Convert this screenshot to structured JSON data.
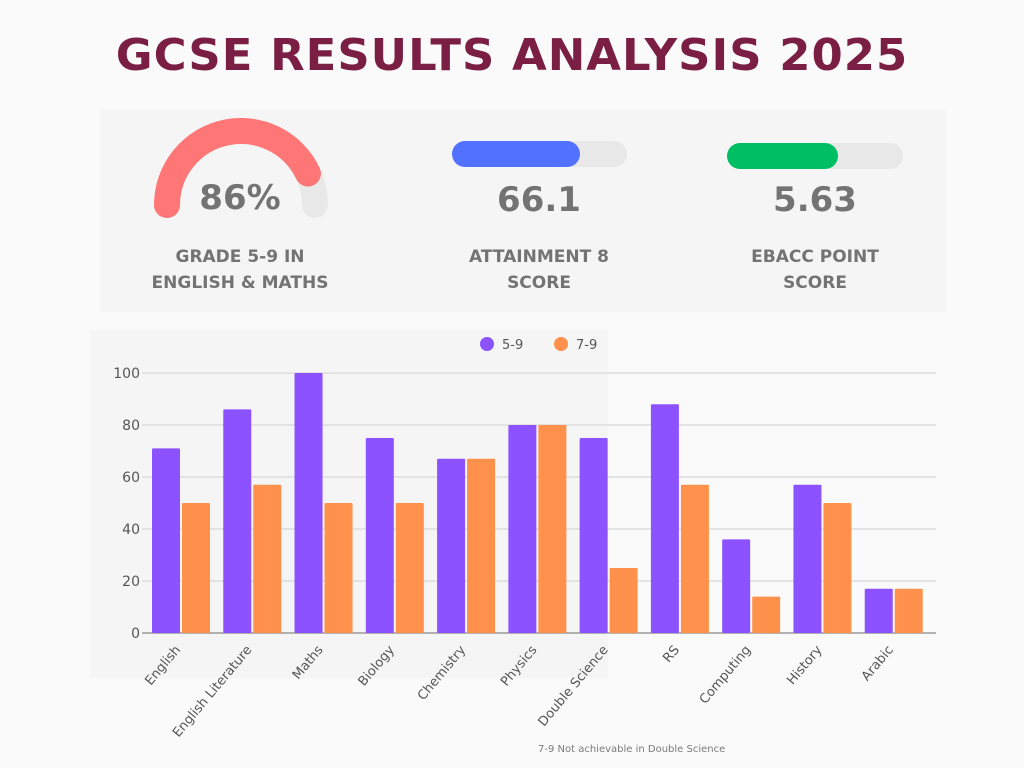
{
  "title": "GCSE RESULTS ANALYSIS 2025",
  "kpis": [
    {
      "value": "86%",
      "label_line1": "GRADE 5-9 IN",
      "label_line2": "ENGLISH & MATHS",
      "type": "gauge",
      "fraction": 0.86,
      "color": "#ff7676"
    },
    {
      "value": "66.1",
      "label_line1": "ATTAINMENT 8",
      "label_line2": "SCORE",
      "type": "progress",
      "fraction": 0.73,
      "color": "#5271ff"
    },
    {
      "value": "5.63",
      "label_line1": "EBACC POINT",
      "label_line2": "SCORE",
      "type": "progress",
      "fraction": 0.63,
      "color": "#00bf63"
    }
  ],
  "footnote": "7-9 Not achievable in Double Science",
  "chart_data": {
    "type": "bar",
    "title": "",
    "xlabel": "",
    "ylabel": "",
    "ylim": [
      0,
      100
    ],
    "yticks": [
      "0",
      "20",
      "40",
      "60",
      "80",
      "100"
    ],
    "grid": true,
    "legend_position": "top-center",
    "categories": [
      "English",
      "English Literature",
      "Maths",
      "Biology",
      "Chemistry",
      "Physics",
      "Double Science",
      "RS",
      "Computing",
      "History",
      "Arabic"
    ],
    "series": [
      {
        "name": "5-9",
        "color": "#8c52ff",
        "values": [
          71,
          86,
          100,
          75,
          67,
          80,
          75,
          88,
          36,
          57,
          17
        ]
      },
      {
        "name": "7-9",
        "color": "#ff914d",
        "values": [
          50,
          57,
          50,
          50,
          67,
          80,
          25,
          57,
          14,
          50,
          17
        ]
      }
    ]
  }
}
